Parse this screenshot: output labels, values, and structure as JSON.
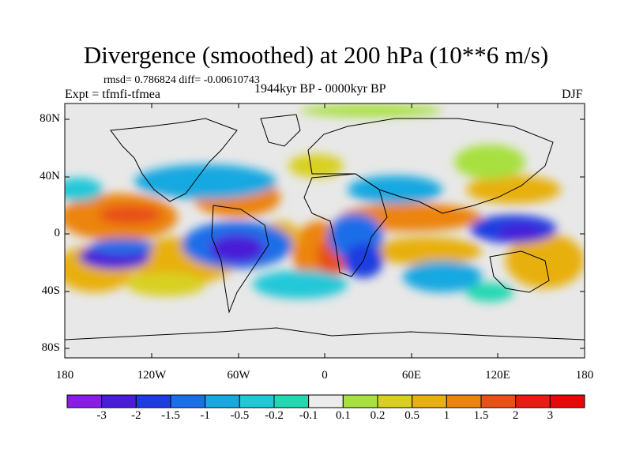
{
  "title": "Divergence (smoothed) at 200 hPa (10**6 m/s)",
  "stats_line": "rmsd= 0.786824 diff= -0.00610743",
  "experiment": "Expt = tfmfi-tfmea",
  "period": "1944kyr BP - 0000kyr BP",
  "season": "DJF",
  "lat_labels": [
    "80N",
    "40N",
    "0",
    "40S",
    "80S"
  ],
  "lon_labels": [
    "180",
    "120W",
    "60W",
    "0",
    "60E",
    "120E",
    "180"
  ],
  "colorbar": {
    "labels": [
      "-3",
      "-2",
      "-1.5",
      "-1",
      "-0.5",
      "-0.2",
      "-0.1",
      "0.1",
      "0.2",
      "0.5",
      "1",
      "1.5",
      "2",
      "3"
    ],
    "colors": [
      "#8a1ce6",
      "#4a1ed8",
      "#1e3ce0",
      "#1a6ee8",
      "#18a8e0",
      "#20c8d8",
      "#22d8b0",
      "#ececec",
      "#a8e040",
      "#d8d020",
      "#e8b010",
      "#ec8410",
      "#e85018",
      "#e81c10",
      "#e80808"
    ]
  },
  "background_color": "#e8e8e8"
}
